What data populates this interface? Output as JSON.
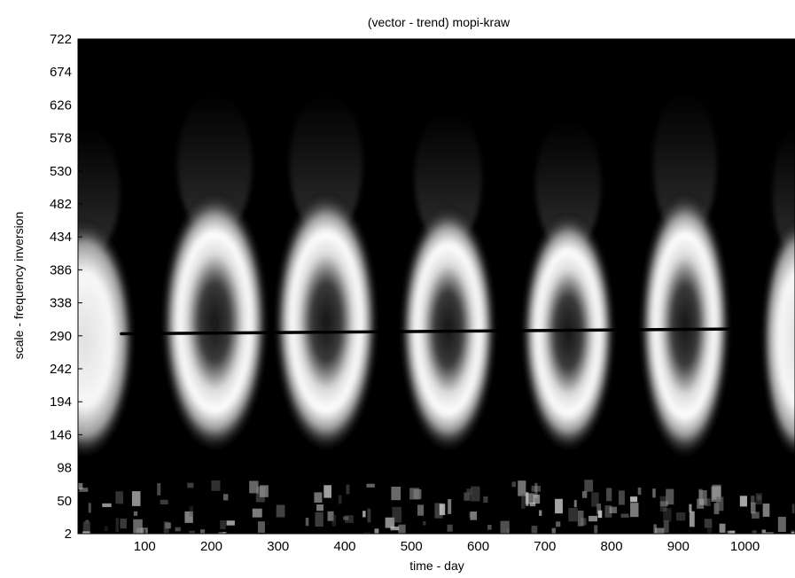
{
  "chart_data": {
    "type": "heatmap",
    "title": "(vector  - trend)  mopi-kraw",
    "xlabel": "time - day",
    "ylabel": "scale -  frequency inversion",
    "xlim": [
      0,
      1075
    ],
    "ylim": [
      2,
      722
    ],
    "x_ticks": [
      100,
      200,
      300,
      400,
      500,
      600,
      700,
      800,
      900,
      1000
    ],
    "y_ticks": [
      2,
      50,
      98,
      146,
      194,
      242,
      290,
      338,
      386,
      434,
      482,
      530,
      578,
      626,
      674,
      722
    ],
    "colormap": "grayscale",
    "grid": false,
    "blobs": [
      {
        "x_center": 10,
        "y_center": 250,
        "x_halfwidth": 75,
        "y_top": 460,
        "y_bottom": 110,
        "dark_core": false
      },
      {
        "x_center": 205,
        "y_center": 275,
        "x_halfwidth": 80,
        "y_top": 500,
        "y_bottom": 120,
        "dark_core": true
      },
      {
        "x_center": 372,
        "y_center": 300,
        "x_halfwidth": 78,
        "y_top": 500,
        "y_bottom": 120,
        "dark_core": true
      },
      {
        "x_center": 555,
        "y_center": 295,
        "x_halfwidth": 72,
        "y_top": 480,
        "y_bottom": 120,
        "dark_core": true
      },
      {
        "x_center": 735,
        "y_center": 280,
        "x_halfwidth": 70,
        "y_top": 470,
        "y_bottom": 120,
        "dark_core": true
      },
      {
        "x_center": 910,
        "y_center": 265,
        "x_halfwidth": 68,
        "y_top": 500,
        "y_bottom": 110,
        "dark_core": true
      },
      {
        "x_center": 1080,
        "y_center": 250,
        "x_halfwidth": 55,
        "y_top": 460,
        "y_bottom": 110,
        "dark_core": false
      }
    ],
    "trend_line": {
      "x": [
        65,
        1000
      ],
      "y": [
        293,
        300
      ],
      "color": "#000000"
    }
  }
}
